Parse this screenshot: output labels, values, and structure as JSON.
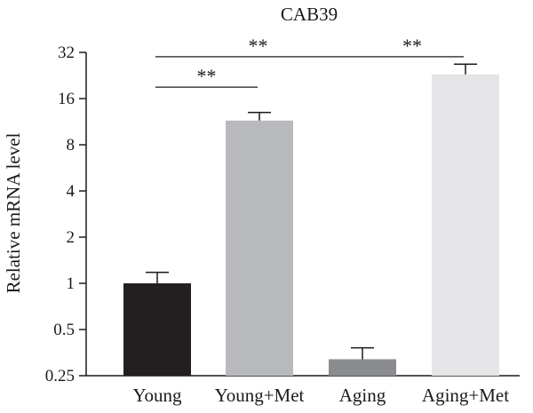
{
  "chart_data": {
    "type": "bar",
    "title": "CAB39",
    "xlabel": "",
    "ylabel": "Relative mRNA level",
    "y_scale": "log2",
    "ylim": [
      0.25,
      32
    ],
    "yticks": [
      0.25,
      0.5,
      1,
      2,
      4,
      8,
      16,
      32
    ],
    "ytick_labels": [
      "0.25",
      "0.5",
      "1",
      "2",
      "4",
      "8",
      "16",
      "32"
    ],
    "categories": [
      "Young",
      "Young+Met",
      "Aging",
      "Aging+Met"
    ],
    "values": [
      1.0,
      11.5,
      0.32,
      23.0
    ],
    "error_upper": [
      1.18,
      13.0,
      0.38,
      26.8
    ],
    "colors": [
      "#231f20",
      "#b8b9bc",
      "#8a8b8e",
      "#e5e5e7"
    ],
    "grid": false,
    "significance": [
      {
        "from": 0,
        "to": 1,
        "label": "**",
        "y": 19
      },
      {
        "from": 0,
        "to": 2,
        "label": "**",
        "y": 30
      },
      {
        "from": 2,
        "to": 3,
        "label": "**",
        "y": 30
      }
    ]
  }
}
